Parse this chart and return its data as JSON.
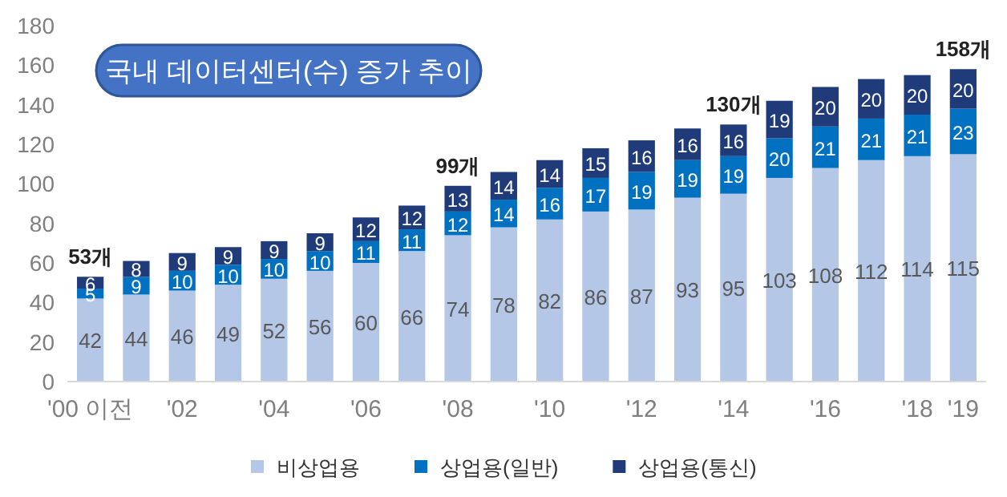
{
  "chart_data": {
    "type": "bar",
    "stacked": true,
    "title": "국내 데이터센터(수) 증가 추이",
    "categories": [
      "'00 이전",
      null,
      "'02",
      null,
      "'04",
      null,
      "'06",
      null,
      "'08",
      null,
      "'10",
      null,
      "'12",
      null,
      "'14",
      null,
      "'16",
      null,
      "'18",
      "'19"
    ],
    "series": [
      {
        "name": "비상업용",
        "color": "#b4c7e7",
        "values": [
          42,
          44,
          46,
          49,
          52,
          56,
          60,
          66,
          74,
          78,
          82,
          86,
          87,
          93,
          95,
          103,
          108,
          112,
          114,
          115
        ]
      },
      {
        "name": "상업용(일반)",
        "color": "#0070c0",
        "values": [
          5,
          9,
          10,
          10,
          10,
          10,
          11,
          11,
          12,
          14,
          16,
          17,
          19,
          19,
          19,
          20,
          21,
          21,
          21,
          23
        ]
      },
      {
        "name": "상업용(통신)",
        "color": "#1f3b7a",
        "values": [
          6,
          8,
          9,
          9,
          9,
          9,
          12,
          12,
          13,
          14,
          14,
          15,
          16,
          16,
          16,
          19,
          20,
          20,
          20,
          20
        ]
      }
    ],
    "ylim": [
      0,
      180
    ],
    "yticks": [
      0,
      20,
      40,
      60,
      80,
      100,
      120,
      140,
      160,
      180
    ],
    "data_labels": true,
    "legend": "bottom",
    "grid": false,
    "annotations": [
      {
        "text": "53개",
        "x": "'00 이전",
        "y": 53
      },
      {
        "text": "99개",
        "x": "'08",
        "y": 99
      },
      {
        "text": "130개",
        "x": "'14",
        "y": 130
      },
      {
        "text": "158개",
        "x": "'19",
        "y": 158
      }
    ]
  }
}
